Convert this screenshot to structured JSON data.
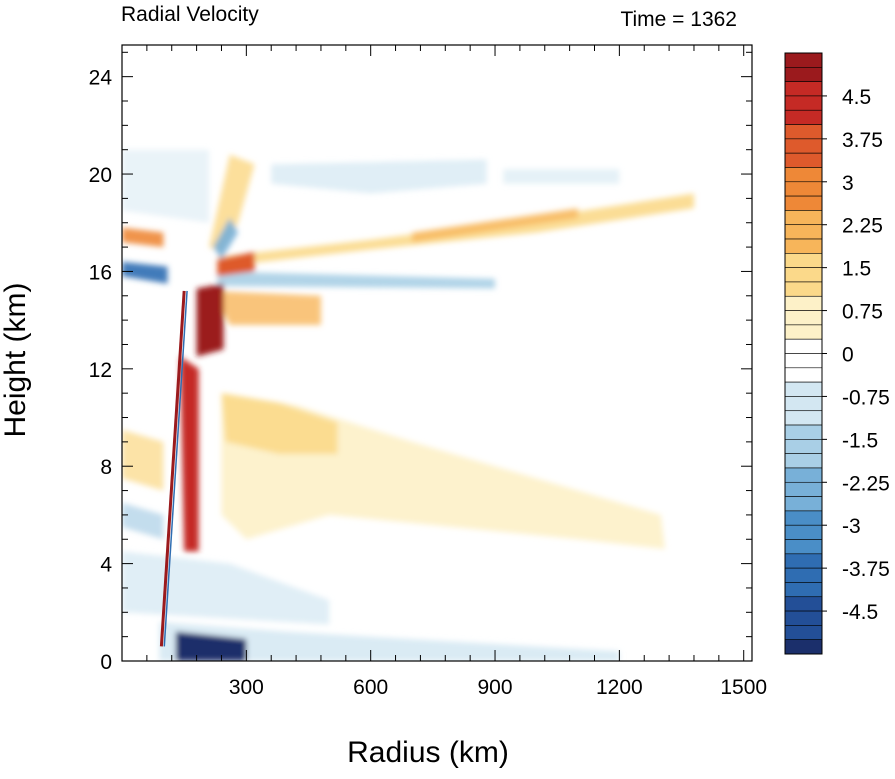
{
  "chart_data": {
    "type": "heatmap",
    "title": "Radial Velocity",
    "subtitle": "Time = 1362",
    "xlabel": "Radius (km)",
    "ylabel": "Height (km)",
    "xlim": [
      0,
      1520
    ],
    "ylim": [
      0,
      25.3
    ],
    "x_ticks": [
      300,
      600,
      900,
      1200,
      1500
    ],
    "y_ticks": [
      0,
      4,
      8,
      12,
      16,
      20,
      24
    ],
    "grid": false,
    "colorbar": {
      "min": -5.25,
      "max": 5.25,
      "step": 0.25,
      "tick_labels": [
        "4.5",
        "3.75",
        "3",
        "2.25",
        "1.5",
        "0.75",
        "0",
        "-0.75",
        "-1.5",
        "-2.25",
        "-3",
        "-3.75",
        "-4.5"
      ],
      "tick_values": [
        4.5,
        3.75,
        3,
        2.25,
        1.5,
        0.75,
        0,
        -0.75,
        -1.5,
        -2.25,
        -3,
        -3.75,
        -4.5
      ]
    },
    "colormap": [
      "#1b2f6b",
      "#234f97",
      "#2f6db2",
      "#4a8ec7",
      "#78b0d8",
      "#a9cfe6",
      "#d3e7f2",
      "#ffffff",
      "#fdf1c8",
      "#fbd98a",
      "#f7b55a",
      "#ee8837",
      "#de5a2c",
      "#c52a25",
      "#9b1a1d"
    ],
    "features": [
      {
        "kind": "outflow_jet",
        "r": [
          230,
          1380
        ],
        "z": [
          16.5,
          19.0
        ],
        "value": 1.5
      },
      {
        "kind": "upper_inflow",
        "r": [
          230,
          900
        ],
        "z": [
          15.3,
          15.6
        ],
        "value": -1.0
      },
      {
        "kind": "eyewall_outflow_core",
        "r": [
          180,
          240
        ],
        "z": [
          12.5,
          15.5
        ],
        "value": 5.0
      },
      {
        "kind": "eyewall_column",
        "r": [
          130,
          180
        ],
        "z": [
          4.5,
          12.0
        ],
        "value": 4.5
      },
      {
        "kind": "midlevel_outflow",
        "r": [
          240,
          1300
        ],
        "z": [
          4.5,
          11.0
        ],
        "value": 0.75
      },
      {
        "kind": "boundary_layer_inflow",
        "r": [
          90,
          1200
        ],
        "z": [
          0,
          1.5
        ],
        "value": -4.5
      }
    ]
  }
}
